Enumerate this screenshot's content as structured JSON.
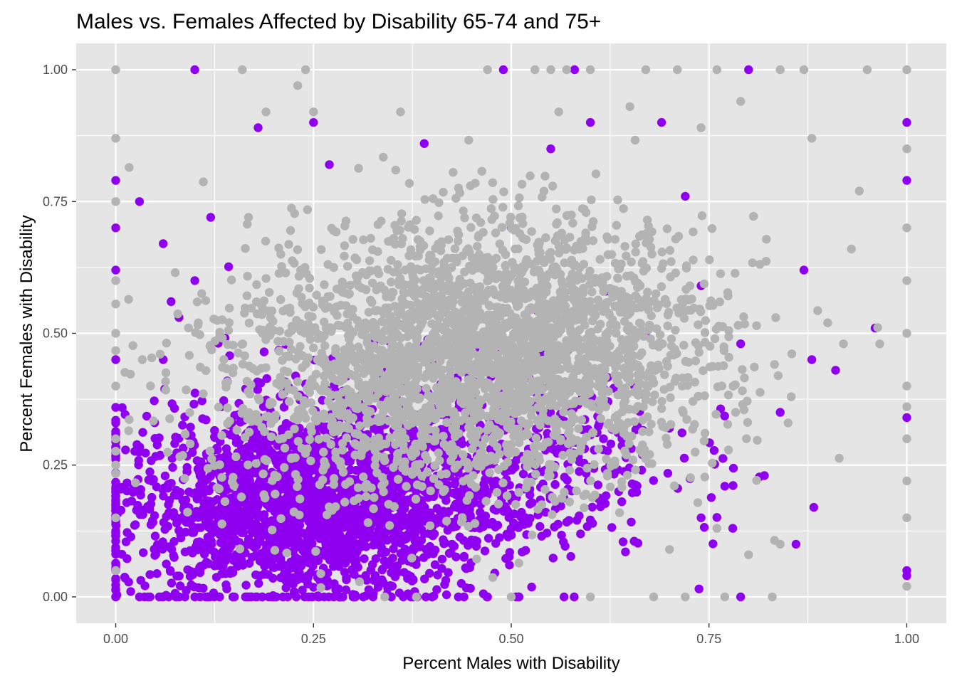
{
  "chart_data": {
    "type": "scatter",
    "title": "Males vs. Females Affected by Disability 65-74 and 75+",
    "xlabel": "Percent Males with Disability",
    "ylabel": "Percent Females with Disability",
    "xlim": [
      -0.05,
      1.05
    ],
    "ylim": [
      -0.05,
      1.05
    ],
    "x_ticks": [
      "0.00",
      "0.25",
      "0.50",
      "0.75",
      "1.00"
    ],
    "y_ticks": [
      "0.00",
      "0.25",
      "0.50",
      "0.75",
      "1.00"
    ],
    "x_tick_values": [
      0,
      0.25,
      0.5,
      0.75,
      1.0
    ],
    "y_tick_values": [
      0,
      0.25,
      0.5,
      0.75,
      1.0
    ],
    "grid": true,
    "legend": "none",
    "colors": {
      "panel": "#e5e5e5",
      "grid": "#ffffff",
      "series_purple": "#9000f0",
      "series_gray": "#b3b3b3"
    },
    "series": [
      {
        "color": "#9000f0",
        "points": [
          [
            0.0,
            0.0
          ],
          [
            0.0,
            0.05
          ],
          [
            0.0,
            0.12
          ],
          [
            0.0,
            0.2
          ],
          [
            0.0,
            0.33
          ],
          [
            0.0,
            0.45
          ],
          [
            0.0,
            0.62
          ],
          [
            0.0,
            0.7
          ],
          [
            0.0,
            0.79
          ],
          [
            0.03,
            0.0
          ],
          [
            0.06,
            0.0
          ],
          [
            0.1,
            0.0
          ],
          [
            0.15,
            0.0
          ],
          [
            0.2,
            0.0
          ],
          [
            0.3,
            0.0
          ],
          [
            0.4,
            0.0
          ],
          [
            0.47,
            0.0
          ],
          [
            0.79,
            0.0
          ],
          [
            0.1,
            1.0
          ],
          [
            0.49,
            1.0
          ],
          [
            0.58,
            1.0
          ],
          [
            0.8,
            1.0
          ],
          [
            1.0,
            0.9
          ],
          [
            1.0,
            0.79
          ],
          [
            1.0,
            0.05
          ],
          [
            1.0,
            0.04
          ],
          [
            1.0,
            0.34
          ],
          [
            0.96,
            0.51
          ],
          [
            0.91,
            0.43
          ],
          [
            0.88,
            0.45
          ],
          [
            0.86,
            0.1
          ],
          [
            0.82,
            0.23
          ],
          [
            0.78,
            0.13
          ],
          [
            0.77,
            0.21
          ],
          [
            0.74,
            0.15
          ],
          [
            0.07,
            0.56
          ],
          [
            0.08,
            0.53
          ],
          [
            0.06,
            0.45
          ],
          [
            0.12,
            0.72
          ],
          [
            0.1,
            0.6
          ],
          [
            0.03,
            0.75
          ],
          [
            0.06,
            0.67
          ],
          [
            0.18,
            0.89
          ],
          [
            0.25,
            0.9
          ],
          [
            0.27,
            0.82
          ],
          [
            0.39,
            0.86
          ],
          [
            0.6,
            0.9
          ],
          [
            0.69,
            0.9
          ],
          [
            0.5,
            0.7
          ],
          [
            0.55,
            0.85
          ],
          [
            0.72,
            0.76
          ],
          [
            0.74,
            0.59
          ],
          [
            0.67,
            0.5
          ],
          [
            0.62,
            0.58
          ],
          [
            0.87,
            0.62
          ],
          [
            0.84,
            0.35
          ],
          [
            0.79,
            0.48
          ],
          [
            0.64,
            0.3
          ],
          [
            0.7,
            0.32
          ]
        ],
        "cluster": {
          "center": [
            0.24,
            0.17
          ],
          "spread": [
            0.12,
            0.09
          ],
          "count": 2100
        },
        "cluster2": {
          "center": [
            0.42,
            0.27
          ],
          "spread": [
            0.14,
            0.1
          ],
          "count": 700
        }
      },
      {
        "color": "#b3b3b3",
        "points": [
          [
            0.0,
            1.0
          ],
          [
            0.16,
            1.0
          ],
          [
            0.24,
            1.0
          ],
          [
            0.47,
            1.0
          ],
          [
            0.53,
            1.0
          ],
          [
            0.55,
            1.0
          ],
          [
            0.57,
            1.0
          ],
          [
            0.6,
            1.0
          ],
          [
            0.67,
            1.0
          ],
          [
            0.71,
            1.0
          ],
          [
            0.76,
            1.0
          ],
          [
            0.84,
            1.0
          ],
          [
            0.87,
            1.0
          ],
          [
            0.95,
            1.0
          ],
          [
            1.0,
            1.0
          ],
          [
            0.23,
            0.97
          ],
          [
            0.79,
            0.94
          ],
          [
            0.0,
            0.87
          ],
          [
            0.0,
            0.75
          ],
          [
            0.0,
            0.6
          ],
          [
            0.0,
            0.5
          ],
          [
            0.0,
            0.4
          ],
          [
            0.0,
            0.3
          ],
          [
            0.0,
            0.25
          ],
          [
            0.0,
            0.15
          ],
          [
            0.0,
            0.05
          ],
          [
            1.0,
            0.85
          ],
          [
            1.0,
            0.7
          ],
          [
            1.0,
            0.6
          ],
          [
            1.0,
            0.5
          ],
          [
            1.0,
            0.4
          ],
          [
            1.0,
            0.3
          ],
          [
            1.0,
            0.22
          ],
          [
            1.0,
            0.15
          ],
          [
            1.0,
            0.02
          ],
          [
            0.34,
            0.0
          ],
          [
            0.38,
            0.0
          ],
          [
            0.5,
            0.0
          ],
          [
            0.6,
            0.0
          ],
          [
            0.68,
            0.0
          ],
          [
            0.72,
            0.0
          ],
          [
            0.77,
            0.0
          ],
          [
            0.83,
            0.0
          ],
          [
            0.36,
            0.92
          ],
          [
            0.25,
            0.92
          ],
          [
            0.19,
            0.92
          ],
          [
            0.56,
            0.92
          ],
          [
            0.65,
            0.93
          ],
          [
            0.74,
            0.89
          ],
          [
            0.88,
            0.87
          ],
          [
            0.94,
            0.77
          ],
          [
            0.93,
            0.66
          ],
          [
            0.9,
            0.52
          ],
          [
            0.92,
            0.48
          ],
          [
            0.85,
            0.33
          ],
          [
            0.8,
            0.08
          ],
          [
            0.84,
            0.1
          ],
          [
            0.7,
            0.09
          ],
          [
            0.76,
            0.13
          ]
        ],
        "cluster": {
          "center": [
            0.5,
            0.47
          ],
          "spread": [
            0.13,
            0.12
          ],
          "count": 2300
        },
        "cluster2": {
          "center": [
            0.3,
            0.4
          ],
          "spread": [
            0.12,
            0.13
          ],
          "count": 700
        }
      }
    ]
  }
}
